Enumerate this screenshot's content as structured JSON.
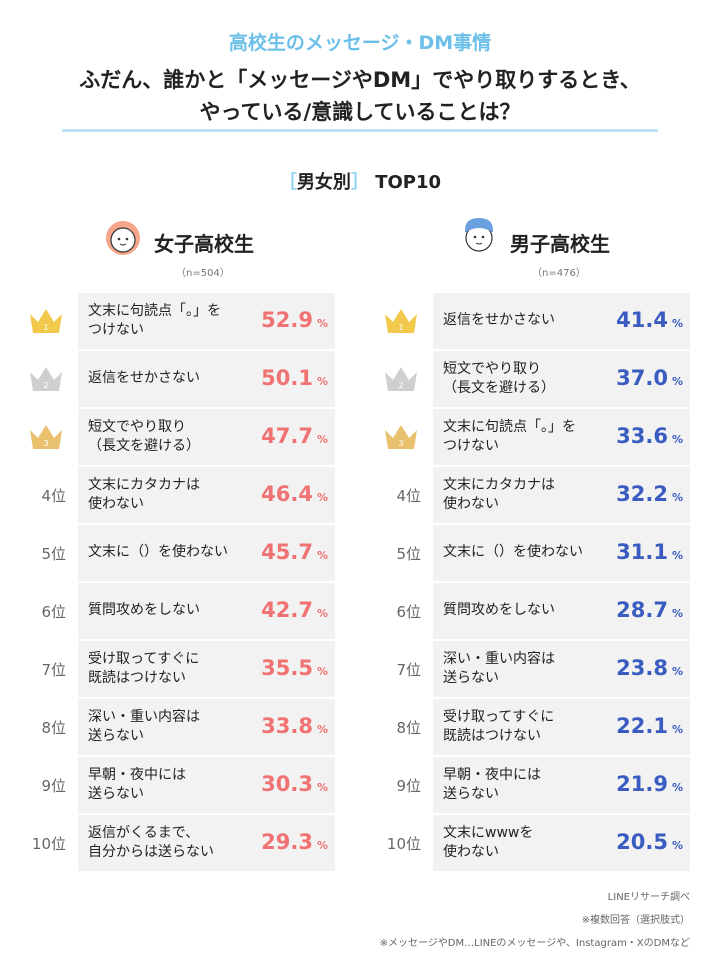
{
  "header": {
    "kicker": "高校生のメッセージ・DM事情",
    "title": [
      "ふだん、誰かと「メッセージやDM」でやり取りするとき、",
      "やっている/意識していることは？"
    ],
    "section": "男女別",
    "section_suffix": "TOP10"
  },
  "columns": [
    {
      "label": "女子高校生",
      "n": "（n=504）",
      "unit": "%",
      "items": [
        {
          "rank": "1",
          "text": [
            "文末に句読点「。」を",
            "つけない"
          ],
          "value": "52.9"
        },
        {
          "rank": "2",
          "text": [
            "返信をせかさない"
          ],
          "value": "50.1"
        },
        {
          "rank": "3",
          "text": [
            "短文でやり取り",
            "（長文を避ける）"
          ],
          "value": "47.7"
        },
        {
          "rank": "4位",
          "text": [
            "文末にカタカナは",
            "使わない"
          ],
          "value": "46.4"
        },
        {
          "rank": "5位",
          "text": [
            "文末に（）を使わない"
          ],
          "value": "45.7"
        },
        {
          "rank": "6位",
          "text": [
            "質問攻めをしない"
          ],
          "value": "42.7"
        },
        {
          "rank": "7位",
          "text": [
            "受け取ってすぐに",
            "既読はつけない"
          ],
          "value": "35.5"
        },
        {
          "rank": "8位",
          "text": [
            "深い・重い内容は",
            "送らない"
          ],
          "value": "33.8"
        },
        {
          "rank": "9位",
          "text": [
            "早朝・夜中には",
            "送らない"
          ],
          "value": "30.3"
        },
        {
          "rank": "10位",
          "text": [
            "返信がくるまで、",
            "自分からは送らない"
          ],
          "value": "29.3"
        }
      ]
    },
    {
      "label": "男子高校生",
      "n": "（n=476）",
      "unit": "%",
      "items": [
        {
          "rank": "1",
          "text": [
            "返信をせかさない"
          ],
          "value": "41.4"
        },
        {
          "rank": "2",
          "text": [
            "短文でやり取り",
            "（長文を避ける）"
          ],
          "value": "37.0"
        },
        {
          "rank": "3",
          "text": [
            "文末に句読点「。」を",
            "つけない"
          ],
          "value": "33.6"
        },
        {
          "rank": "4位",
          "text": [
            "文末にカタカナは",
            "使わない"
          ],
          "value": "32.2"
        },
        {
          "rank": "5位",
          "text": [
            "文末に（）を使わない"
          ],
          "value": "31.1"
        },
        {
          "rank": "6位",
          "text": [
            "質問攻めをしない"
          ],
          "value": "28.7"
        },
        {
          "rank": "7位",
          "text": [
            "深い・重い内容は",
            "送らない"
          ],
          "value": "23.8"
        },
        {
          "rank": "8位",
          "text": [
            "受け取ってすぐに",
            "既読はつけない"
          ],
          "value": "22.1"
        },
        {
          "rank": "9位",
          "text": [
            "早朝・夜中には",
            "送らない"
          ],
          "value": "21.9"
        },
        {
          "rank": "10位",
          "text": [
            "文末にwwwを",
            "使わない"
          ],
          "value": "20.5"
        }
      ]
    }
  ],
  "footer": [
    "LINEリサーチ調べ",
    "※複数回答（選択肢式）",
    "※メッセージやDM…LINEのメッセージや、Instagram・XのDMなど"
  ]
}
